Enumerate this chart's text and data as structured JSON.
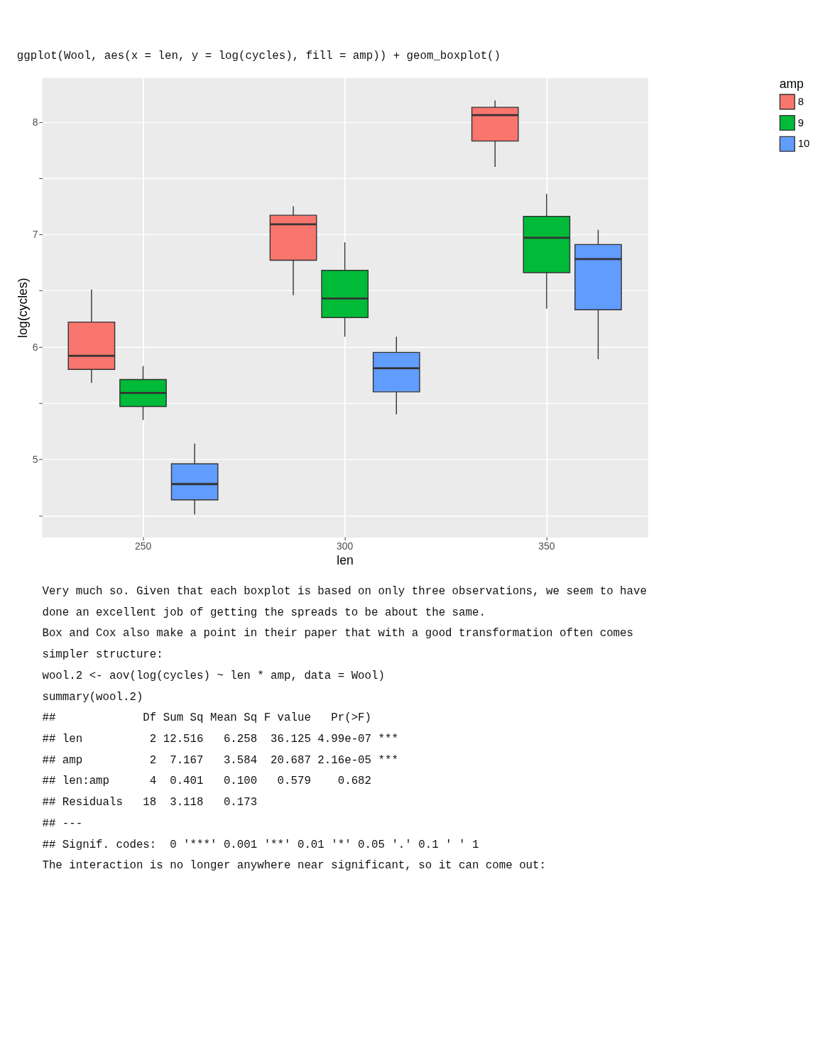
{
  "chart_data": {
    "type": "box",
    "title": "ggplot(Wool, aes(x = len, y = log(cycles), fill = amp)) + geom_boxplot()",
    "xlabel": "len",
    "ylabel": "log(cycles)",
    "legend_title": "amp",
    "legend": "right",
    "grid": true,
    "categories": [
      "250",
      "300",
      "350"
    ],
    "ylim": [
      4.31,
      8.39
    ],
    "yticks": [
      {
        "value": 4.5,
        "label": null
      },
      5,
      {
        "value": 5.5,
        "label": null
      },
      6,
      {
        "value": 6.5,
        "label": null
      },
      7,
      {
        "value": 7.5,
        "label": null
      },
      8
    ],
    "series": [
      {
        "name": "8",
        "color": "#f8766d",
        "boxes": [
          {
            "low": 5.68,
            "q1": 5.8,
            "median": 5.92,
            "q3": 6.22,
            "high": 6.51
          },
          {
            "low": 6.46,
            "q1": 6.77,
            "median": 7.09,
            "q3": 7.17,
            "high": 7.25
          },
          {
            "low": 7.6,
            "q1": 7.83,
            "median": 8.06,
            "q3": 8.13,
            "high": 8.19
          }
        ]
      },
      {
        "name": "9",
        "color": "#00ba38",
        "boxes": [
          {
            "low": 5.35,
            "q1": 5.47,
            "median": 5.59,
            "q3": 5.71,
            "high": 5.83
          },
          {
            "low": 6.09,
            "q1": 6.26,
            "median": 6.43,
            "q3": 6.68,
            "high": 6.93
          },
          {
            "low": 6.34,
            "q1": 6.66,
            "median": 6.97,
            "q3": 7.16,
            "high": 7.36
          }
        ]
      },
      {
        "name": "10",
        "color": "#619cff",
        "boxes": [
          {
            "low": 4.51,
            "q1": 4.64,
            "median": 4.78,
            "q3": 4.96,
            "high": 5.14
          },
          {
            "low": 5.4,
            "q1": 5.6,
            "median": 5.81,
            "q3": 5.95,
            "high": 6.09
          },
          {
            "low": 5.89,
            "q1": 6.33,
            "median": 6.78,
            "q3": 6.91,
            "high": 7.04
          }
        ]
      }
    ],
    "annotations": [
      "Very much so. Given that each boxplot is based on only three observations, we seem to have",
      "done an excellent job of getting the spreads to be about the same.",
      "Box and Cox also make a point in their paper that with a good transformation often comes",
      "simpler structure:",
      "wool.2 <- aov(log(cycles) ~ len * amp, data = Wool)",
      "summary(wool.2)",
      "##             Df Sum Sq Mean Sq F value   Pr(>F)",
      "## len          2 12.516   6.258  36.125 4.99e-07 ***",
      "## amp          2  7.167   3.584  20.687 2.16e-05 ***",
      "## len:amp      4  0.401   0.100   0.579    0.682",
      "## Residuals   18  3.118   0.173",
      "## ---",
      "## Signif. codes:  0 '***' 0.001 '**' 0.01 '*' 0.05 '.' 0.1 ' ' 1",
      "The interaction is no longer anywhere near significant, so it can come out:"
    ]
  }
}
